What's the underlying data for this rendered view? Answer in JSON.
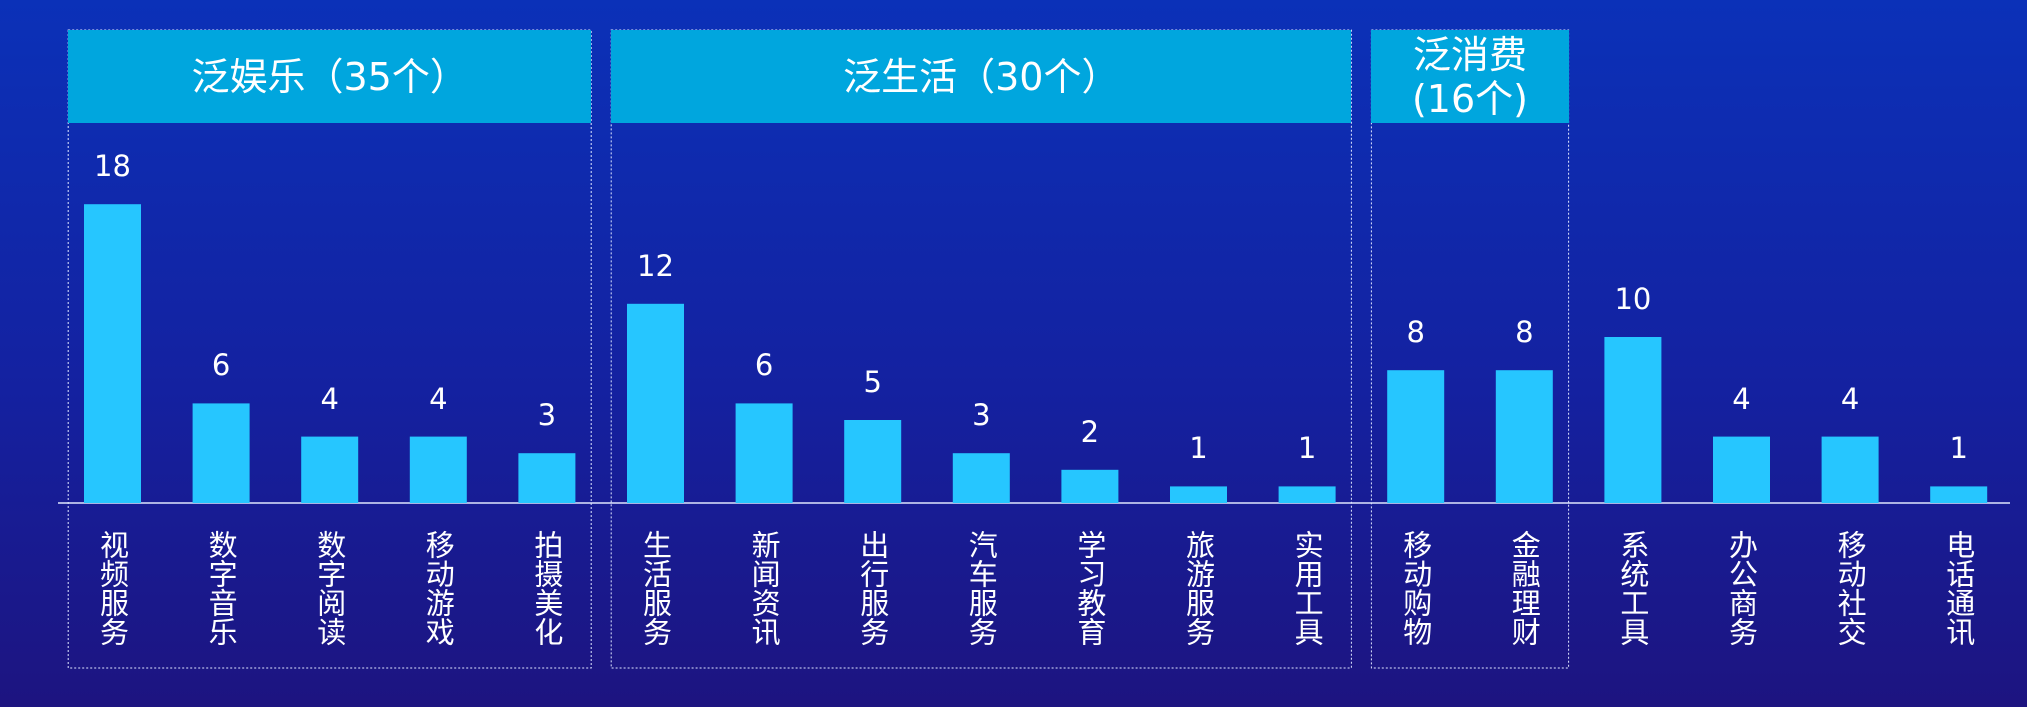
{
  "chart_data": {
    "type": "bar",
    "groups": [
      "泛娱乐（35个）",
      "泛生活（30个）",
      "泛消费\n(16个)"
    ],
    "categories": [
      "视频服务",
      "数字音乐",
      "数字阅读",
      "移动游戏",
      "拍摄美化",
      "生活服务",
      "新闻资讯",
      "出行服务",
      "汽车服务",
      "学习教育",
      "旅游服务",
      "实用工具",
      "移动购物",
      "金融理财",
      "系统工具",
      "办公商务",
      "移动社交",
      "电话通讯"
    ],
    "values": [
      18,
      6,
      4,
      4,
      3,
      12,
      6,
      5,
      3,
      2,
      1,
      1,
      8,
      8,
      10,
      4,
      4,
      1
    ],
    "color": "#26c6ff"
  }
}
